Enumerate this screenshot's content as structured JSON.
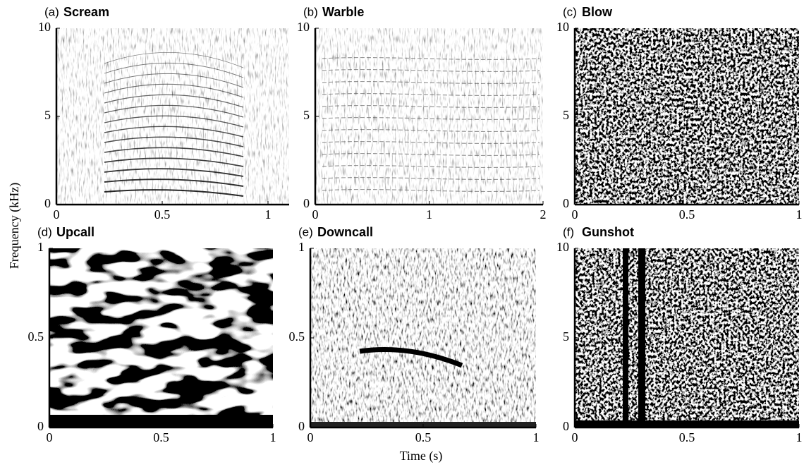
{
  "figure": {
    "xlabel": "Time (s)",
    "ylabel": "Frequency (kHz)"
  },
  "chart_data": [
    {
      "type": "spectrogram",
      "label": "(a)",
      "title": "Scream",
      "xlim": [
        0,
        1.1
      ],
      "xticks": [
        0,
        0.5,
        1
      ],
      "ylim": [
        0,
        10
      ],
      "yticks": [
        0,
        5,
        10
      ]
    },
    {
      "type": "spectrogram",
      "label": "(b)",
      "title": "Warble",
      "xlim": [
        0,
        2
      ],
      "xticks": [
        0,
        1,
        2
      ],
      "ylim": [
        0,
        10
      ],
      "yticks": [
        0,
        5,
        10
      ]
    },
    {
      "type": "spectrogram",
      "label": "(c)",
      "title": "Blow",
      "xlim": [
        0,
        1
      ],
      "xticks": [
        0,
        0.5,
        1
      ],
      "ylim": [
        0,
        10
      ],
      "yticks": [
        0,
        5,
        10
      ]
    },
    {
      "type": "spectrogram",
      "label": "(d)",
      "title": "Upcall",
      "xlim": [
        0,
        1
      ],
      "xticks": [
        0,
        0.5,
        1
      ],
      "ylim": [
        0,
        1
      ],
      "yticks": [
        0,
        0.5,
        1
      ]
    },
    {
      "type": "spectrogram",
      "label": "(e)",
      "title": "Downcall",
      "xlim": [
        0,
        1
      ],
      "xticks": [
        0,
        0.5,
        1
      ],
      "ylim": [
        0,
        1
      ],
      "yticks": [
        0,
        0.5,
        1
      ]
    },
    {
      "type": "spectrogram",
      "label": "(f)",
      "title": "Gunshot",
      "xlim": [
        0,
        1
      ],
      "xticks": [
        0,
        0.5,
        1
      ],
      "ylim": [
        0,
        10
      ],
      "yticks": [
        0,
        5,
        10
      ]
    }
  ]
}
